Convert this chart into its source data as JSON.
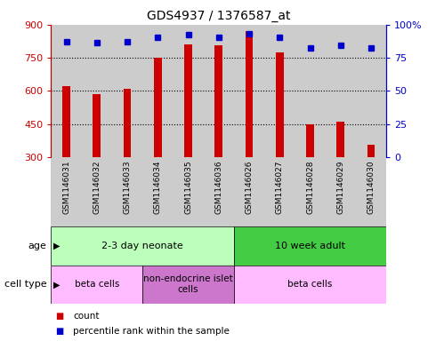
{
  "title": "GDS4937 / 1376587_at",
  "samples": [
    "GSM1146031",
    "GSM1146032",
    "GSM1146033",
    "GSM1146034",
    "GSM1146035",
    "GSM1146036",
    "GSM1146026",
    "GSM1146027",
    "GSM1146028",
    "GSM1146029",
    "GSM1146030"
  ],
  "counts": [
    620,
    585,
    610,
    748,
    808,
    805,
    870,
    775,
    450,
    460,
    355
  ],
  "percentiles": [
    87,
    86,
    87,
    90,
    92,
    90,
    93,
    90,
    82,
    84,
    82
  ],
  "y_min": 300,
  "y_max": 900,
  "y_ticks": [
    300,
    450,
    600,
    750,
    900
  ],
  "y2_ticks": [
    0,
    25,
    50,
    75,
    100
  ],
  "bar_color": "#cc0000",
  "dot_color": "#0000cc",
  "bg_color": "#ffffff",
  "grid_color": "#000000",
  "sample_bg": "#cccccc",
  "age_groups": [
    {
      "label": "2-3 day neonate",
      "start": 0,
      "end": 6,
      "color": "#bbffbb"
    },
    {
      "label": "10 week adult",
      "start": 6,
      "end": 11,
      "color": "#44cc44"
    }
  ],
  "cell_type_groups": [
    {
      "label": "beta cells",
      "start": 0,
      "end": 3,
      "color": "#ffbbff"
    },
    {
      "label": "non-endocrine islet\ncells",
      "start": 3,
      "end": 6,
      "color": "#cc77cc"
    },
    {
      "label": "beta cells",
      "start": 6,
      "end": 11,
      "color": "#ffbbff"
    }
  ],
  "legend_count_label": "count",
  "legend_pct_label": "percentile rank within the sample",
  "xlabel_age": "age",
  "xlabel_celltype": "cell type"
}
